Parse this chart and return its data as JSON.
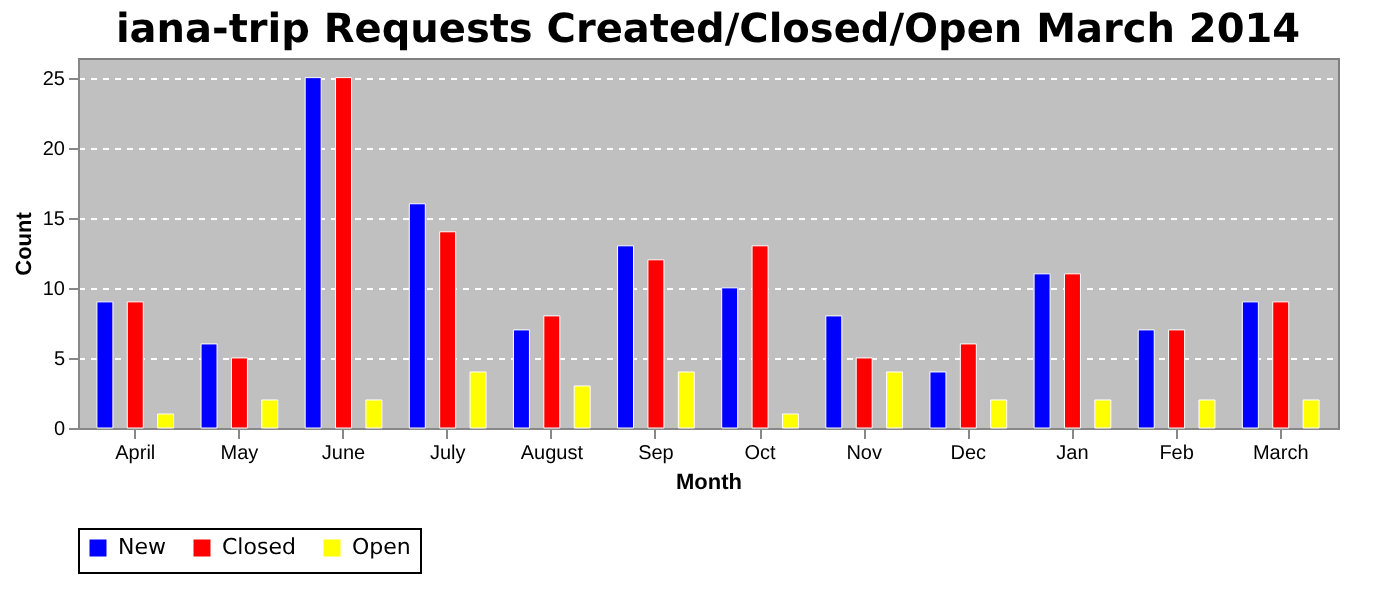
{
  "chart_data": {
    "type": "bar",
    "title": "iana-trip Requests Created/Closed/Open March 2014",
    "xlabel": "Month",
    "ylabel": "Count",
    "categories": [
      "April",
      "May",
      "June",
      "July",
      "August",
      "Sep",
      "Oct",
      "Nov",
      "Dec",
      "Jan",
      "Feb",
      "March"
    ],
    "series": [
      {
        "name": "New",
        "color": "#0000ff",
        "values": [
          9,
          6,
          25,
          16,
          7,
          13,
          10,
          8,
          4,
          11,
          7,
          9
        ]
      },
      {
        "name": "Closed",
        "color": "#ff0000",
        "values": [
          9,
          5,
          25,
          14,
          8,
          12,
          13,
          5,
          6,
          11,
          7,
          9
        ]
      },
      {
        "name": "Open",
        "color": "#ffff00",
        "values": [
          1,
          2,
          2,
          4,
          3,
          4,
          1,
          4,
          2,
          2,
          2,
          2
        ]
      }
    ],
    "ylim": [
      0,
      26.4
    ],
    "yticks": [
      0,
      5,
      10,
      15,
      20,
      25
    ],
    "grid": "y",
    "legend": "bottom"
  }
}
